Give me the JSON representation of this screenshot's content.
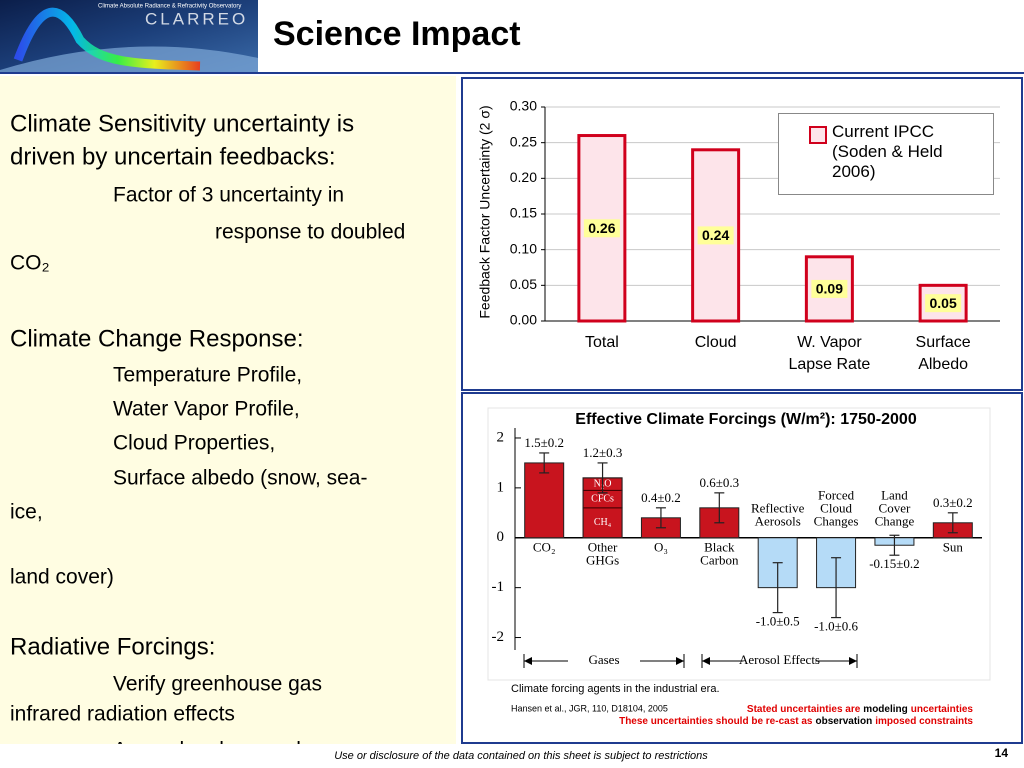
{
  "header": {
    "title": "Science Impact",
    "logo": {
      "name": "CLARREO",
      "caption": "Climate Absolute Radiance & Refractivity Observatory"
    }
  },
  "body": {
    "lines": [
      "Climate Sensitivity uncertainty is",
      "driven by uncertain feedbacks:",
      "Factor of 3 uncertainty in",
      "response to doubled",
      "CO₂",
      "Climate Change Response:",
      "Temperature Profile,",
      "Water Vapor Profile,",
      "Cloud Properties,",
      "Surface albedo (snow, sea-",
      "ice,",
      "land cover)",
      "Radiative Forcings:",
      "Verify greenhouse gas",
      "infrared radiation effects",
      "Aerosols advances by"
    ]
  },
  "chart_data": [
    {
      "type": "bar",
      "categories": [
        [
          "Total"
        ],
        [
          "Cloud"
        ],
        [
          "W. Vapor",
          "Lapse Rate"
        ],
        [
          "Surface",
          "Albedo"
        ]
      ],
      "ylabel": "Feedback Factor Uncertainty (2 σ)",
      "ylim": [
        0,
        0.3
      ],
      "yticks": [
        {
          "value": 0,
          "label": "0.00"
        },
        0.05,
        {
          "value": 0.1,
          "label": "0.10"
        },
        0.15,
        {
          "value": 0.2,
          "label": "0.20"
        },
        0.25,
        {
          "value": 0.3,
          "label": "0.30"
        }
      ],
      "grid": true,
      "legend": "upper right",
      "series": [
        {
          "name": "Current IPCC (Soden & Held 2006)",
          "color": "#fde4ea",
          "edge": "#d0001c",
          "values": [
            0.26,
            0.24,
            0.09,
            0.05
          ]
        }
      ]
    },
    {
      "type": "errorbar",
      "title": "Effective Climate Forcings (W/m²): 1750-2000",
      "categories": [
        [
          "CO₂"
        ],
        [
          "Other",
          "GHGs"
        ],
        [
          "O₃"
        ],
        [
          "Black",
          "Carbon"
        ],
        [
          "Reflective",
          "Aerosols"
        ],
        [
          "Forced",
          "Cloud",
          "Changes"
        ],
        [
          "Land",
          "Cover",
          "Change"
        ],
        [
          "Sun"
        ]
      ],
      "values": [
        1.5,
        1.2,
        0.4,
        0.6,
        -1.0,
        -1.0,
        -0.15,
        0.3
      ],
      "errors": [
        0.2,
        0.3,
        0.2,
        0.3,
        0.5,
        0.6,
        0.2,
        0.2
      ],
      "value_labels": [
        "1.5±0.2",
        "1.2±0.3",
        "0.4±0.2",
        "0.6±0.3",
        "-1.0±0.5",
        "-1.0±0.6",
        "-0.15±0.2",
        "0.3±0.2"
      ],
      "colors": [
        "#c8141e",
        "#c8141e",
        "#c8141e",
        "#c8141e",
        "#b5dbf7",
        "#b5dbf7",
        "#b5dbf7",
        "#c8141e"
      ],
      "components": [
        null,
        [
          {
            "name": "CH₄",
            "value": 0.6
          },
          {
            "name": "CFCs",
            "value": 0.35
          },
          {
            "name": "N₂O",
            "value": 0.25
          }
        ],
        null,
        null,
        null,
        null,
        null,
        null
      ],
      "ylim": [
        -2.25,
        2.2
      ],
      "yticks": [
        -2,
        -1,
        0,
        1,
        2
      ],
      "annotations": [
        "Gases",
        "Aerosol Effects"
      ],
      "caption": "Climate forcing agents in the industrial era.",
      "citation": "Hansen et al., JGR, 110, D18104, 2005",
      "notes": [
        [
          {
            "text": "Stated uncertainties are",
            "color": "#e00000"
          },
          {
            "text": "modeling",
            "color": "#000000"
          },
          {
            "text": "uncertainties",
            "color": "#e00000"
          }
        ],
        [
          {
            "text": "These uncertainties should be re-cast as",
            "color": "#e00000"
          },
          {
            "text": "observation",
            "color": "#000000"
          },
          {
            "text": "imposed constraints",
            "color": "#e00000"
          }
        ]
      ]
    }
  ],
  "footer": {
    "notice": "Use or disclosure of the data contained on this sheet is subject to restrictions",
    "page": 14
  }
}
